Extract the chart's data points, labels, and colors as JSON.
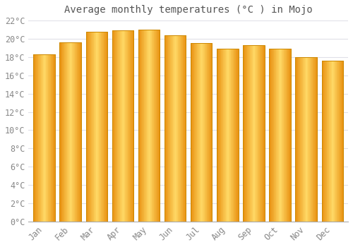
{
  "title": "Average monthly temperatures (°C ) in Mojo",
  "months": [
    "Jan",
    "Feb",
    "Mar",
    "Apr",
    "May",
    "Jun",
    "Jul",
    "Aug",
    "Sep",
    "Oct",
    "Nov",
    "Dec"
  ],
  "values": [
    18.3,
    19.6,
    20.8,
    20.9,
    21.0,
    20.4,
    19.5,
    18.9,
    19.3,
    18.9,
    18.0,
    17.6
  ],
  "bar_color_main": "#FDB827",
  "bar_color_light": "#FFD966",
  "bar_color_dark": "#E89010",
  "bar_edge_color": "#CC8800",
  "background_color": "#FFFFFF",
  "plot_bg_color": "#FFFFFF",
  "ylim": [
    0,
    22
  ],
  "yticks": [
    0,
    2,
    4,
    6,
    8,
    10,
    12,
    14,
    16,
    18,
    20,
    22
  ],
  "grid_color": "#E0E0E8",
  "title_fontsize": 10,
  "tick_fontsize": 8.5,
  "tick_color": "#888888",
  "title_color": "#555555",
  "bar_width": 0.82
}
